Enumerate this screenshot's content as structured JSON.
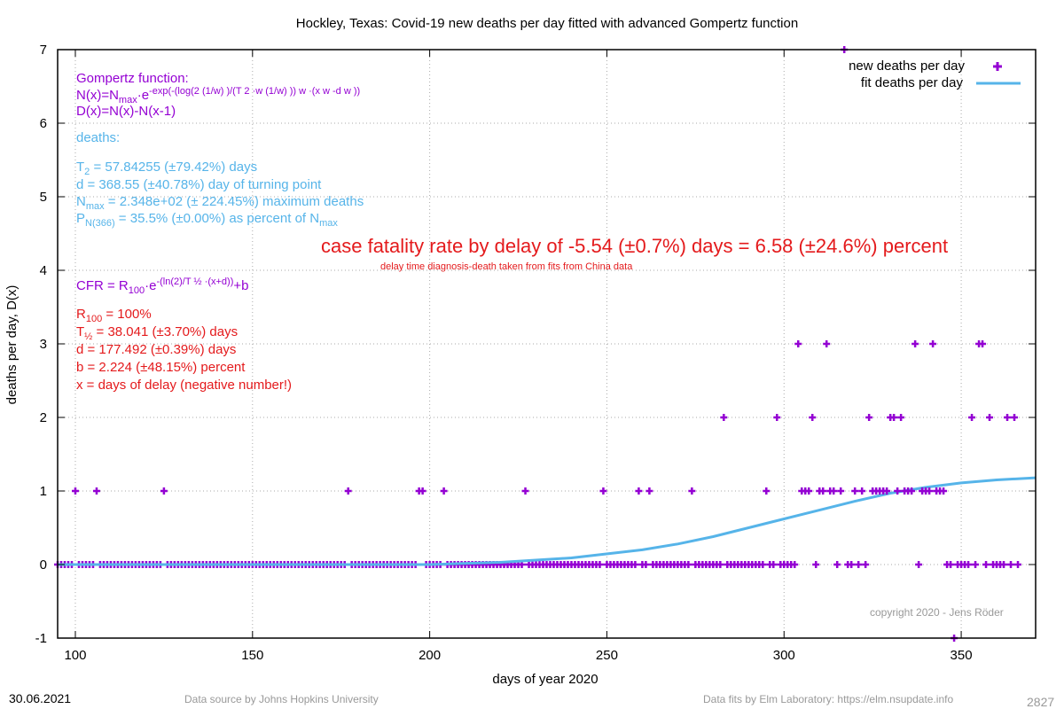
{
  "chart_data": {
    "type": "scatter",
    "title": "Hockley,  Texas: Covid-19 new deaths per day fitted with advanced Gompertz function",
    "xlabel": "days of year 2020",
    "ylabel": "deaths per day, D(x)",
    "xlim": [
      95,
      371
    ],
    "ylim": [
      -1,
      7
    ],
    "xticks": [
      100,
      150,
      200,
      250,
      300,
      350
    ],
    "yticks": [
      -1,
      0,
      1,
      2,
      3,
      4,
      5,
      6,
      7
    ],
    "grid": true,
    "legend_position": "top-right",
    "colors": {
      "points": "#9400d3",
      "fit": "#56b4e9",
      "cfr": "#e41a1c"
    },
    "series": [
      {
        "name": "new deaths per day",
        "kind": "points",
        "x": [
          100,
          106,
          125,
          177,
          197,
          198,
          204,
          227,
          249,
          259,
          262,
          274,
          283,
          295,
          298,
          304,
          305,
          306,
          307,
          308,
          310,
          311,
          312,
          313,
          314,
          316,
          317,
          320,
          322,
          324,
          325,
          326,
          327,
          328,
          329,
          330,
          331,
          332,
          333,
          334,
          335,
          336,
          337,
          339,
          340,
          341,
          342,
          343,
          344,
          345,
          348,
          353,
          355,
          356,
          358,
          363,
          365
        ],
        "y": [
          1,
          1,
          1,
          1,
          1,
          1,
          1,
          1,
          1,
          1,
          1,
          1,
          2,
          1,
          2,
          3,
          1,
          1,
          1,
          2,
          1,
          1,
          3,
          1,
          1,
          1,
          7,
          1,
          1,
          2,
          1,
          1,
          1,
          1,
          1,
          2,
          2,
          1,
          2,
          1,
          1,
          1,
          3,
          1,
          1,
          1,
          3,
          1,
          1,
          1,
          -1,
          2,
          3,
          3,
          2,
          2,
          2
        ]
      },
      {
        "name": "fit deaths per day",
        "kind": "line",
        "x": [
          95,
          200,
          220,
          240,
          260,
          270,
          280,
          290,
          300,
          310,
          320,
          330,
          340,
          350,
          360,
          371
        ],
        "y": [
          0.0,
          0.0,
          0.03,
          0.09,
          0.2,
          0.28,
          0.38,
          0.5,
          0.62,
          0.74,
          0.86,
          0.97,
          1.05,
          1.11,
          1.15,
          1.18
        ]
      }
    ]
  },
  "annotations": {
    "gompertz_title": "Gompertz function:",
    "gompertz_nx": "N(x)=N",
    "gompertz_nx_sub": "max",
    "gompertz_nx_mid": "·e",
    "gompertz_nx_sup": "-exp(-(log(2 (1/w) )/(T 2 ·w (1/w) )) w ·(x w -d w ))",
    "gompertz_dx": "D(x)=N(x)-N(x-1)",
    "deaths_label": "deaths:",
    "t2_a": "T",
    "t2_sub": "2",
    "t2_b": " = 57.84255 (±79.42%) days",
    "d_line": "d = 368.55 (±40.78%) day of turning point",
    "nmax_a": "N",
    "nmax_sub": "max",
    "nmax_b": " = 2.348e+02 (± 224.45%) maximum deaths",
    "p_a": "P",
    "p_sub": "N(366)",
    "p_b": " = 35.5% (±0.00%) as percent of N",
    "p_sub2": "max",
    "cfr_headline": "case fatality rate by delay of -5.54 (±0.7%) days = 6.58 (±24.6%) percent",
    "cfr_note": "delay time diagnosis-death taken from fits from China data",
    "cfr_formula_a": "CFR = R",
    "cfr_formula_sub": "100",
    "cfr_formula_mid": "·e",
    "cfr_formula_sup": "-(ln(2)/T ½ ·(x+d))",
    "cfr_formula_b": "+b",
    "r100_a": "R",
    "r100_sub": "100",
    "r100_b": " = 100%",
    "thalf_a": "T",
    "thalf_sub": "½",
    "thalf_b": " = 38.041 (±3.70%) days",
    "d2_line": "d = 177.492 (±0.39%) days",
    "b_line": "b = 2.224 (±48.15%) percent",
    "x_line": "x = days of delay (negative number!)",
    "copyright": "copyright 2020 - Jens Röder"
  },
  "footer": {
    "date": "30.06.2021",
    "source": "Data source by Johns Hopkins University",
    "fits": "Data fits by Elm Laboratory: https://elm.nsupdate.info",
    "number": "2827"
  }
}
